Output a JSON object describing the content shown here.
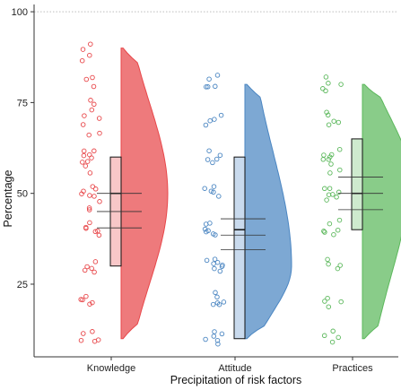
{
  "chart_data": {
    "type": "raincloud",
    "xlabel": "Precipitation of risk factors",
    "ylabel": "Percentage",
    "ylim": [
      5,
      102
    ],
    "y_ticks": [
      25,
      50,
      75,
      100
    ],
    "reference_line": 100,
    "grid": false,
    "legend": "none",
    "categories": [
      "Knowledge",
      "Attitude",
      "Practices"
    ],
    "colors": {
      "Knowledge": "#e8474a",
      "Attitude": "#4b86c2",
      "Practices": "#5cb85c"
    },
    "groups": [
      {
        "name": "Knowledge",
        "box": {
          "q1": 30,
          "median": 50,
          "q3": 60
        },
        "density_range": [
          10,
          90
        ],
        "density_peak": 50,
        "mean_ci": {
          "lower": 40.5,
          "mean": 45,
          "upper": 50
        },
        "points": [
          91,
          90,
          88,
          86,
          82,
          81,
          80,
          76,
          75,
          73,
          72,
          70,
          69,
          67,
          66,
          62,
          61,
          61,
          60,
          60,
          59,
          58,
          57,
          56,
          52,
          51,
          51,
          50,
          50,
          49,
          48,
          46,
          45,
          42,
          41,
          40,
          40,
          39,
          38,
          31,
          30,
          30,
          29,
          28,
          21,
          21,
          20,
          20,
          19,
          12,
          11,
          10,
          10,
          9
        ]
      },
      {
        "name": "Attitude",
        "box": {
          "q1": 10,
          "median": 40,
          "q3": 60
        },
        "density_range": [
          10,
          80
        ],
        "density_peak": 30,
        "mean_ci": {
          "lower": 34.5,
          "mean": 38.5,
          "upper": 43
        },
        "points": [
          82,
          81,
          80,
          80,
          79,
          72,
          71,
          70,
          69,
          62,
          61,
          60,
          60,
          59,
          52,
          51,
          50,
          50,
          49,
          42,
          41,
          40,
          40,
          40,
          39,
          38,
          32,
          31,
          31,
          30,
          30,
          30,
          29,
          28,
          22,
          21,
          20,
          20,
          20,
          19,
          12,
          11,
          10,
          10,
          10,
          9
        ]
      },
      {
        "name": "Practices",
        "box": {
          "q1": 40,
          "median": 50,
          "q3": 65
        },
        "density_range": [
          10,
          80
        ],
        "density_peak": 55,
        "mean_ci": {
          "lower": 45.5,
          "mean": 50,
          "upper": 54.5
        },
        "points": [
          82,
          81,
          80,
          79,
          78,
          72,
          71,
          70,
          70,
          69,
          62,
          61,
          61,
          60,
          60,
          59,
          58,
          57,
          56,
          52,
          51,
          51,
          50,
          50,
          49,
          48,
          42,
          41,
          40,
          40,
          39,
          38,
          32,
          31,
          30,
          29,
          21,
          20,
          20,
          19,
          12,
          11,
          10,
          9
        ]
      }
    ]
  }
}
